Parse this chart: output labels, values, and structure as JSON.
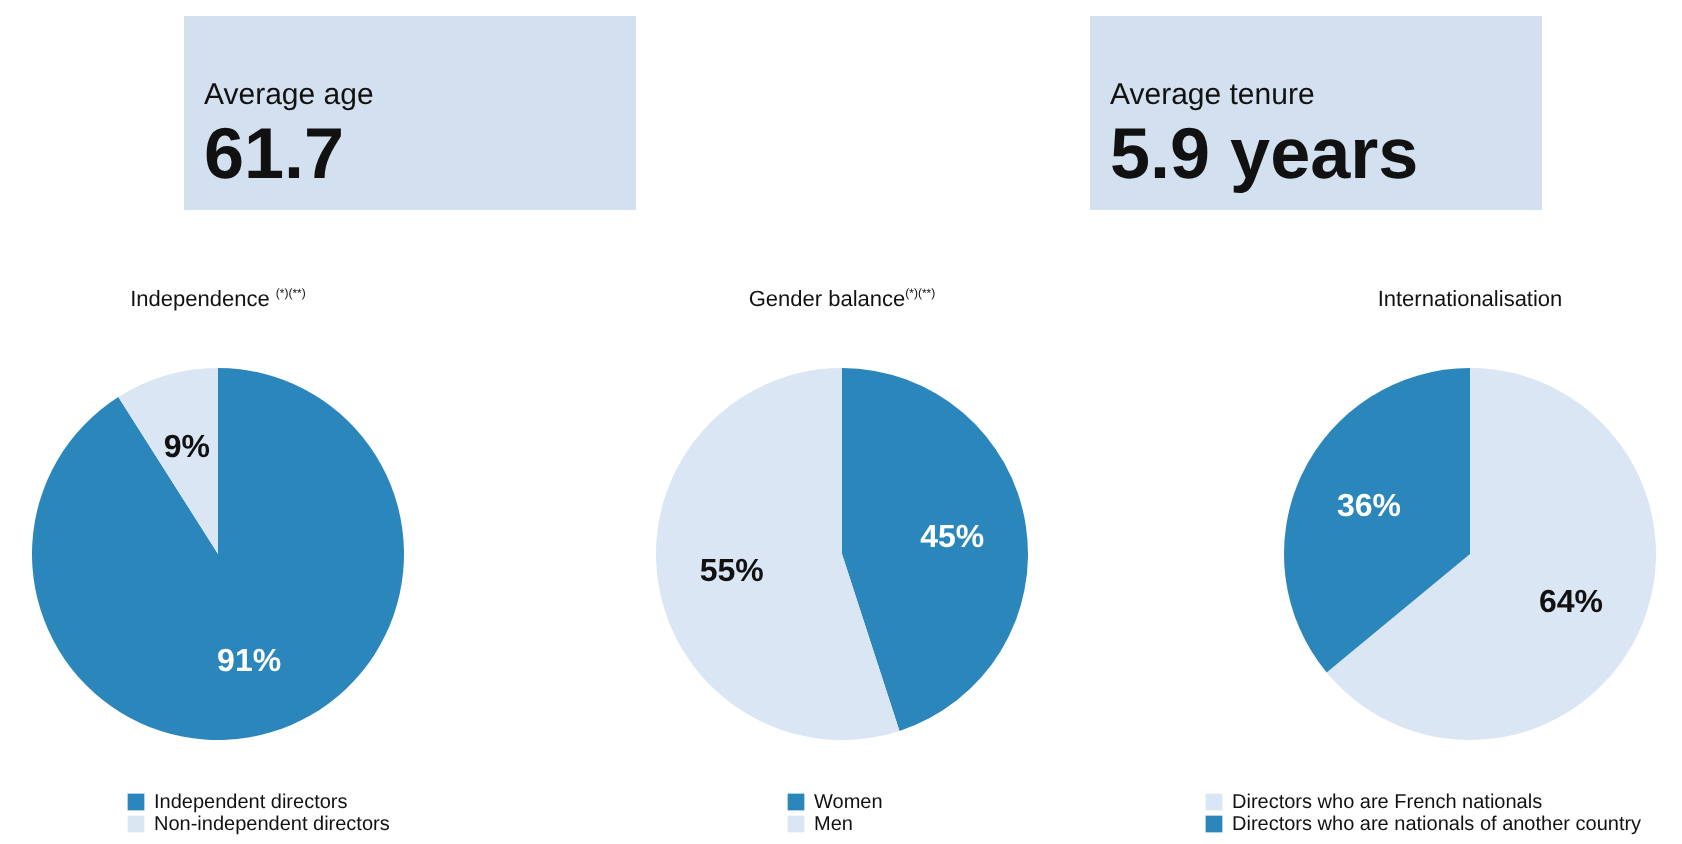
{
  "chart_data": [
    {
      "type": "other",
      "title": "Average age",
      "annotations": [
        "61.7"
      ]
    },
    {
      "type": "other",
      "title": "Average tenure",
      "annotations": [
        "5.9 years"
      ]
    },
    {
      "type": "pie",
      "title": "Independence $^{(*)(**)}$",
      "categories": [
        "Independent directors",
        "Non-independent directors"
      ],
      "values": [
        91,
        9
      ],
      "colors": [
        "#2a86bb",
        "#dae6f3"
      ],
      "value_labels": [
        "91%",
        "9%"
      ],
      "legend": "bottom"
    },
    {
      "type": "pie",
      "title": "Gender balance$^{(*)(**)}$",
      "categories": [
        "Women",
        "Men"
      ],
      "values": [
        45,
        55
      ],
      "colors": [
        "#2a86bb",
        "#dae6f3"
      ],
      "value_labels": [
        "45%",
        "55%"
      ],
      "legend": "bottom"
    },
    {
      "type": "pie",
      "title": "Internationalisation",
      "categories": [
        "Directors who are French nationals",
        "Directors who are nationals of another country"
      ],
      "values": [
        64,
        36
      ],
      "colors": [
        "#dae6f3",
        "#2a86bb"
      ],
      "value_labels": [
        "64%",
        "36%"
      ],
      "legend": "bottom"
    }
  ]
}
